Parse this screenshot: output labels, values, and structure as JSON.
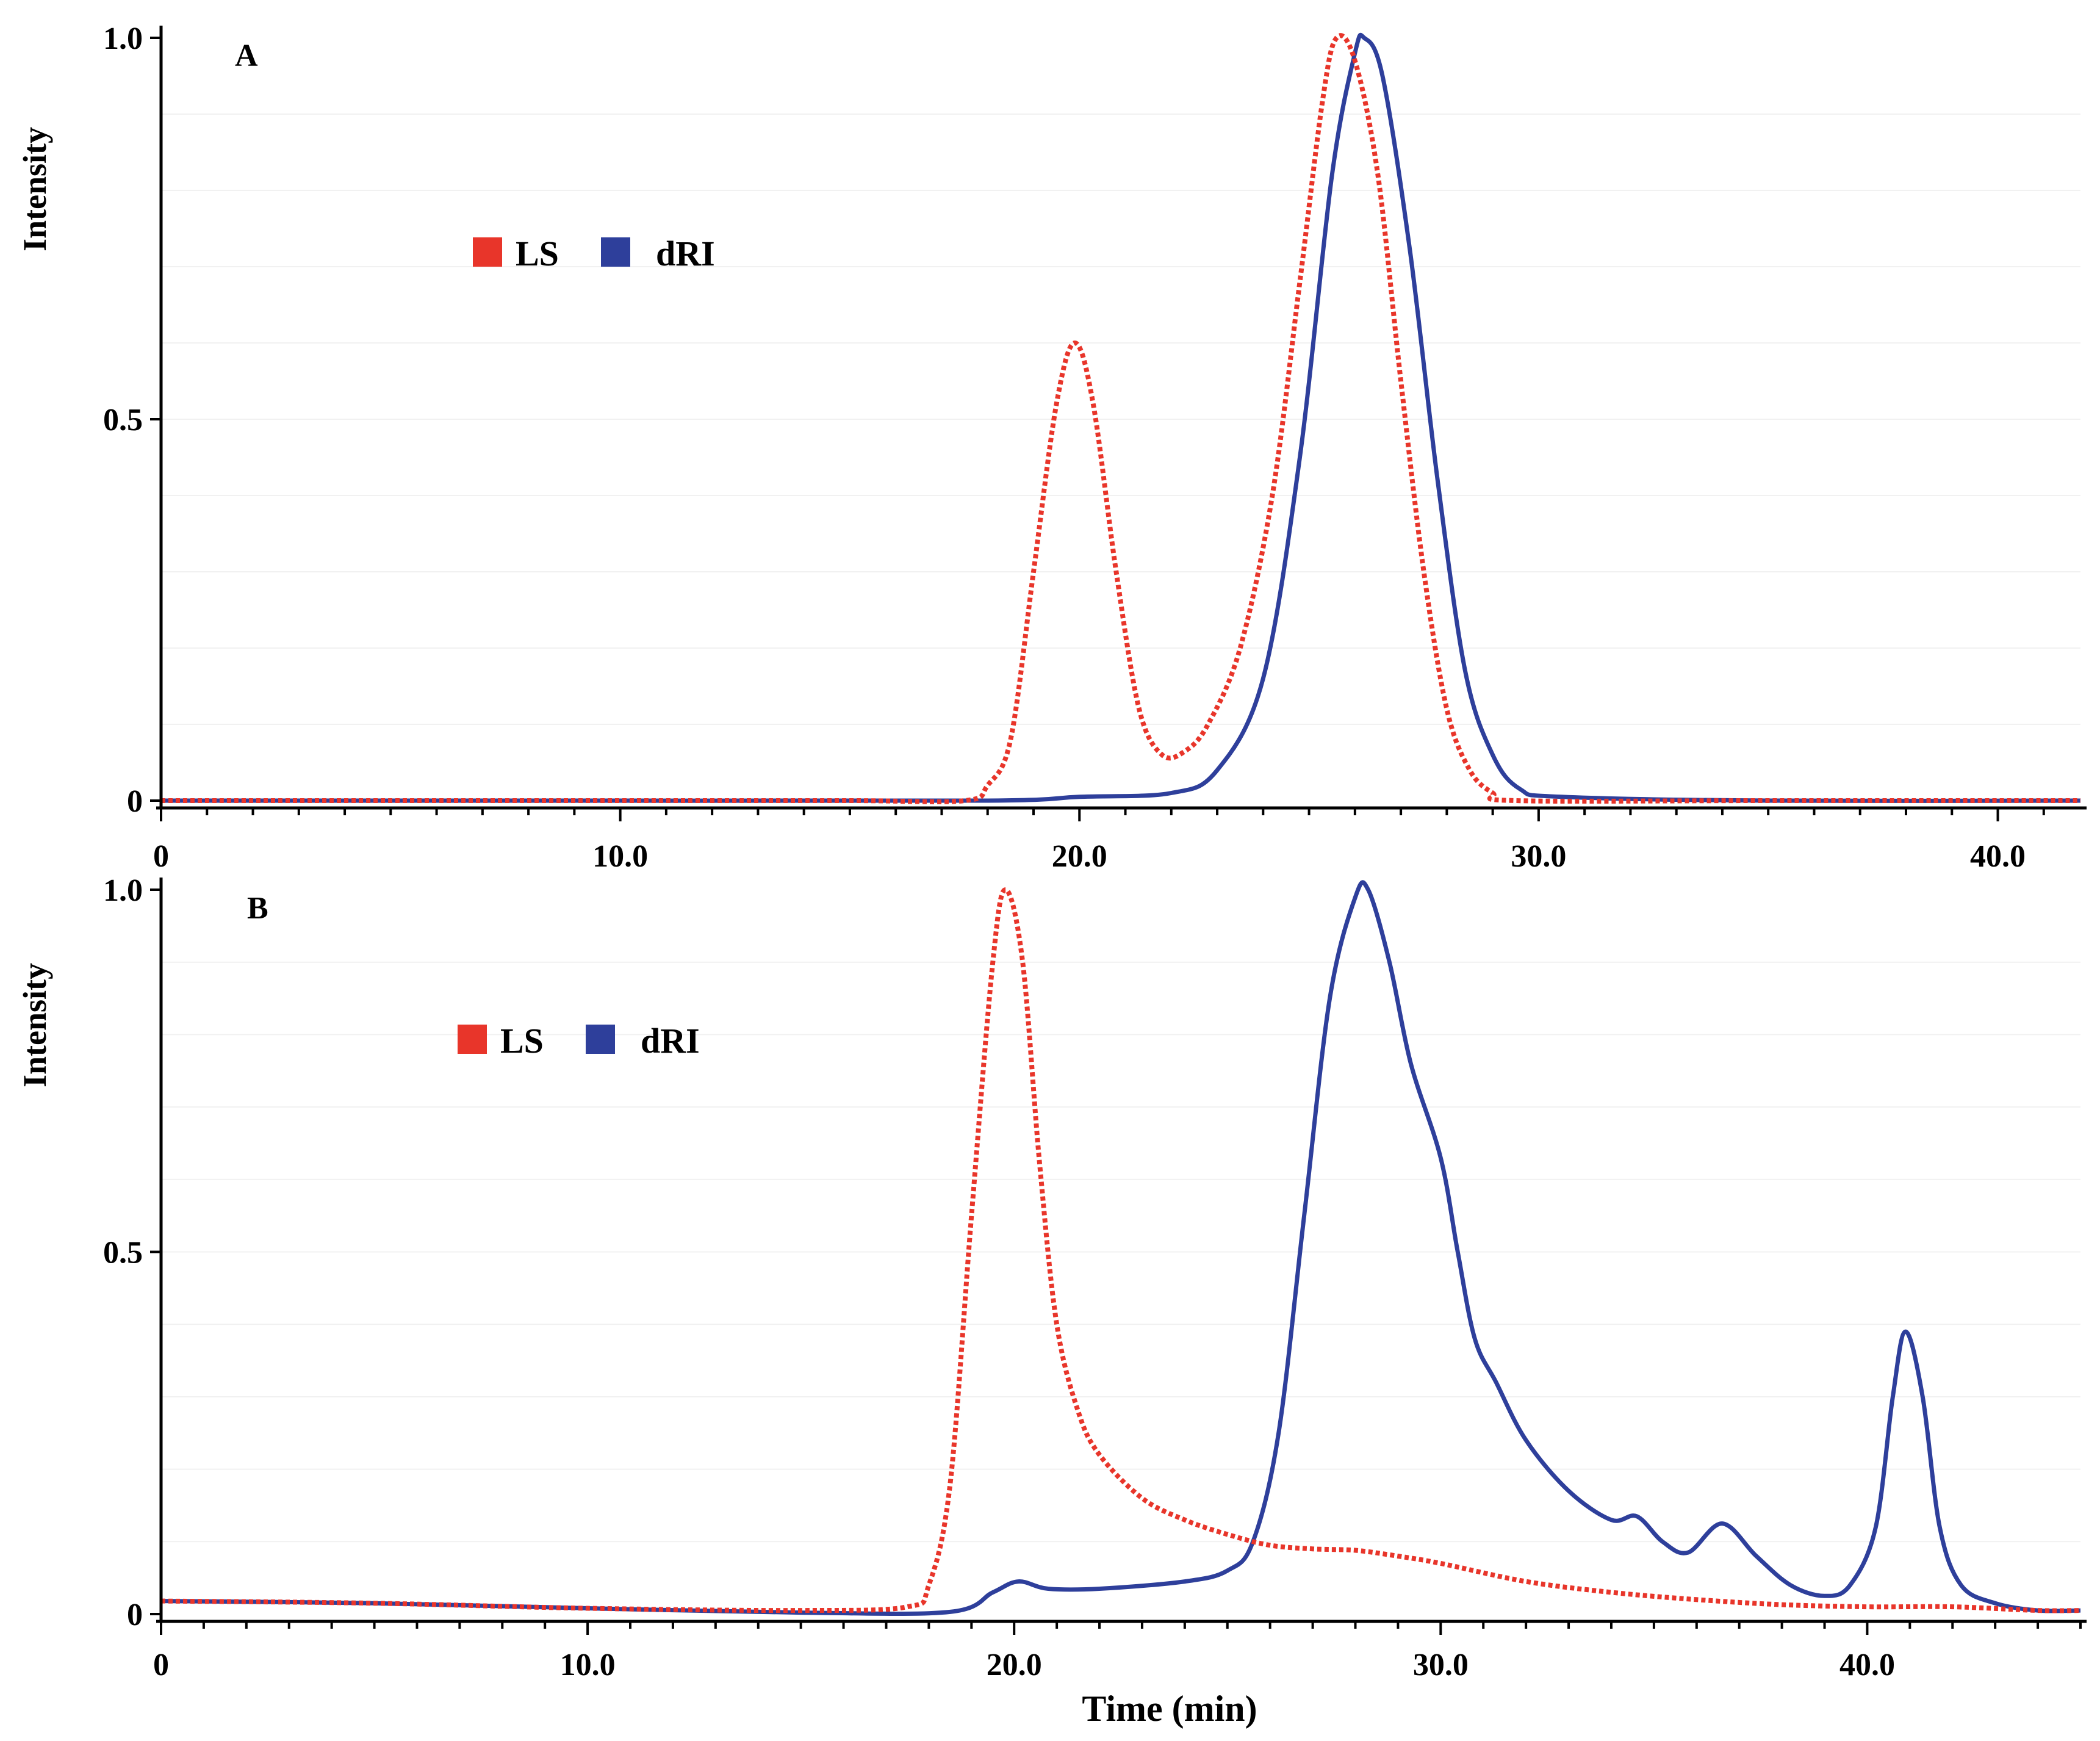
{
  "colors": {
    "ls": "#e8352a",
    "dri": "#2e3f9b"
  },
  "chart_data": [
    {
      "type": "line",
      "panel_label": "A",
      "xlabel": "",
      "ylabel": "Intensity",
      "xlim": [
        0,
        41.8
      ],
      "ylim": [
        0,
        1.0
      ],
      "y_ticks": [
        {
          "value": 0,
          "label": "0"
        },
        {
          "value": 0.5,
          "label": "0.5"
        },
        {
          "value": 1.0,
          "label": "1.0"
        }
      ],
      "x_ticks": [
        {
          "value": 0,
          "label": "0"
        },
        {
          "value": 10,
          "label": "10.0"
        },
        {
          "value": 20,
          "label": "20.0"
        },
        {
          "value": 30,
          "label": "30.0"
        },
        {
          "value": 40,
          "label": "40.0"
        }
      ],
      "legend": [
        "LS",
        "dRI"
      ],
      "series": [
        {
          "name": "LS",
          "style": "dotted",
          "points": [
            [
              0,
              0.0
            ],
            [
              5,
              0.0
            ],
            [
              10,
              0.0
            ],
            [
              15,
              0.0
            ],
            [
              17.5,
              0.0
            ],
            [
              18.0,
              0.02
            ],
            [
              18.5,
              0.08
            ],
            [
              19.0,
              0.3
            ],
            [
              19.5,
              0.52
            ],
            [
              19.9,
              0.6
            ],
            [
              20.3,
              0.52
            ],
            [
              20.8,
              0.3
            ],
            [
              21.3,
              0.12
            ],
            [
              21.8,
              0.06
            ],
            [
              22.3,
              0.065
            ],
            [
              22.8,
              0.1
            ],
            [
              23.5,
              0.2
            ],
            [
              24.2,
              0.4
            ],
            [
              24.8,
              0.68
            ],
            [
              25.3,
              0.92
            ],
            [
              25.6,
              1.0
            ],
            [
              26.0,
              0.97
            ],
            [
              26.5,
              0.82
            ],
            [
              27.0,
              0.55
            ],
            [
              27.5,
              0.3
            ],
            [
              28.0,
              0.12
            ],
            [
              28.5,
              0.04
            ],
            [
              29.0,
              0.01
            ],
            [
              29.5,
              0.0
            ],
            [
              35,
              0.0
            ],
            [
              41.8,
              0.0
            ]
          ]
        },
        {
          "name": "dRI",
          "style": "solid",
          "points": [
            [
              0,
              0.0
            ],
            [
              10,
              0.0
            ],
            [
              18,
              0.0
            ],
            [
              20,
              0.005
            ],
            [
              22,
              0.01
            ],
            [
              23,
              0.04
            ],
            [
              24,
              0.16
            ],
            [
              24.8,
              0.45
            ],
            [
              25.5,
              0.82
            ],
            [
              26.0,
              0.98
            ],
            [
              26.2,
              1.0
            ],
            [
              26.6,
              0.95
            ],
            [
              27.2,
              0.72
            ],
            [
              27.8,
              0.42
            ],
            [
              28.4,
              0.17
            ],
            [
              29.0,
              0.06
            ],
            [
              29.6,
              0.015
            ],
            [
              30.5,
              0.005
            ],
            [
              35,
              0.0
            ],
            [
              41.8,
              0.0
            ]
          ]
        }
      ]
    },
    {
      "type": "line",
      "panel_label": "B",
      "xlabel": "Time (min)",
      "ylabel": "Intensity",
      "xlim": [
        0,
        45
      ],
      "ylim": [
        0,
        1.0
      ],
      "y_ticks": [
        {
          "value": 0,
          "label": "0"
        },
        {
          "value": 0.5,
          "label": "0.5"
        },
        {
          "value": 1.0,
          "label": "1.0"
        }
      ],
      "x_ticks": [
        {
          "value": 0,
          "label": "0"
        },
        {
          "value": 10,
          "label": "10.0"
        },
        {
          "value": 20,
          "label": "20.0"
        },
        {
          "value": 30,
          "label": "30.0"
        },
        {
          "value": 40,
          "label": "40.0"
        }
      ],
      "legend": [
        "LS",
        "dRI"
      ],
      "series": [
        {
          "name": "LS",
          "style": "dotted",
          "points": [
            [
              0,
              0.018
            ],
            [
              5,
              0.015
            ],
            [
              10,
              0.008
            ],
            [
              15,
              0.005
            ],
            [
              17.5,
              0.01
            ],
            [
              18.0,
              0.04
            ],
            [
              18.5,
              0.18
            ],
            [
              19.0,
              0.55
            ],
            [
              19.5,
              0.9
            ],
            [
              19.8,
              1.0
            ],
            [
              20.2,
              0.9
            ],
            [
              20.6,
              0.62
            ],
            [
              21.0,
              0.4
            ],
            [
              21.5,
              0.28
            ],
            [
              22.0,
              0.22
            ],
            [
              23.0,
              0.16
            ],
            [
              24.0,
              0.13
            ],
            [
              25.0,
              0.11
            ],
            [
              26.0,
              0.095
            ],
            [
              27.0,
              0.09
            ],
            [
              28.0,
              0.088
            ],
            [
              29.0,
              0.08
            ],
            [
              30.0,
              0.07
            ],
            [
              32.0,
              0.045
            ],
            [
              34.0,
              0.03
            ],
            [
              36.0,
              0.02
            ],
            [
              38.0,
              0.013
            ],
            [
              40.0,
              0.01
            ],
            [
              42.0,
              0.01
            ],
            [
              44.0,
              0.005
            ],
            [
              45,
              0.005
            ]
          ]
        },
        {
          "name": "dRI",
          "style": "solid",
          "points": [
            [
              0,
              0.018
            ],
            [
              5,
              0.015
            ],
            [
              10,
              0.008
            ],
            [
              15,
              0.002
            ],
            [
              18.5,
              0.003
            ],
            [
              19.5,
              0.03
            ],
            [
              20.1,
              0.045
            ],
            [
              20.8,
              0.035
            ],
            [
              22,
              0.035
            ],
            [
              24,
              0.045
            ],
            [
              25,
              0.06
            ],
            [
              25.6,
              0.1
            ],
            [
              26.2,
              0.25
            ],
            [
              26.8,
              0.55
            ],
            [
              27.4,
              0.85
            ],
            [
              28.0,
              0.99
            ],
            [
              28.3,
              1.0
            ],
            [
              28.8,
              0.9
            ],
            [
              29.3,
              0.76
            ],
            [
              30.0,
              0.63
            ],
            [
              30.4,
              0.5
            ],
            [
              30.8,
              0.38
            ],
            [
              31.3,
              0.32
            ],
            [
              32.0,
              0.24
            ],
            [
              33.0,
              0.17
            ],
            [
              34.0,
              0.13
            ],
            [
              34.6,
              0.135
            ],
            [
              35.2,
              0.1
            ],
            [
              35.8,
              0.085
            ],
            [
              36.6,
              0.125
            ],
            [
              37.4,
              0.08
            ],
            [
              38.2,
              0.04
            ],
            [
              39.0,
              0.025
            ],
            [
              39.6,
              0.04
            ],
            [
              40.2,
              0.12
            ],
            [
              40.6,
              0.3
            ],
            [
              40.9,
              0.39
            ],
            [
              41.3,
              0.3
            ],
            [
              41.7,
              0.12
            ],
            [
              42.2,
              0.04
            ],
            [
              43.0,
              0.015
            ],
            [
              44.0,
              0.005
            ],
            [
              45,
              0.005
            ]
          ]
        }
      ]
    }
  ]
}
